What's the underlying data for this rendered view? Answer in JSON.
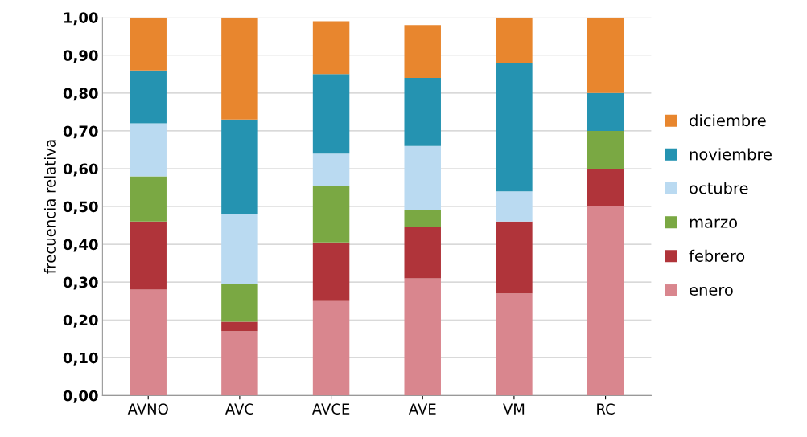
{
  "chart_data": {
    "type": "bar",
    "stacked": true,
    "ylabel": "frecuencia relativa",
    "categories": [
      "AVNO",
      "AVC",
      "AVCE",
      "AVE",
      "VM",
      "RC"
    ],
    "series": [
      {
        "name": "enero",
        "color": "#d9868e",
        "values": [
          0.28,
          0.17,
          0.25,
          0.31,
          0.27,
          0.5
        ]
      },
      {
        "name": "febrero",
        "color": "#b0343a",
        "values": [
          0.18,
          0.025,
          0.155,
          0.135,
          0.19,
          0.1
        ]
      },
      {
        "name": "marzo",
        "color": "#7aa843",
        "values": [
          0.12,
          0.1,
          0.15,
          0.045,
          0,
          0.1
        ]
      },
      {
        "name": "octubre",
        "color": "#badaf1",
        "values": [
          0.14,
          0.185,
          0.085,
          0.17,
          0.08,
          0
        ]
      },
      {
        "name": "noviembre",
        "color": "#2593b1",
        "values": [
          0.14,
          0.25,
          0.21,
          0.18,
          0.34,
          0.1
        ]
      },
      {
        "name": "diciembre",
        "color": "#e8862e",
        "values": [
          0.14,
          0.27,
          0.14,
          0.14,
          0.12,
          0.2
        ]
      }
    ],
    "ylim": [
      0,
      1
    ],
    "yticks": [
      {
        "value": 0,
        "label": "0,00"
      },
      {
        "value": 0.1,
        "label": "0,10"
      },
      {
        "value": 0.2,
        "label": "0,20"
      },
      {
        "value": 0.3,
        "label": "0,30"
      },
      {
        "value": 0.4,
        "label": "0,40"
      },
      {
        "value": 0.5,
        "label": "0,50"
      },
      {
        "value": 0.6,
        "label": "0,60"
      },
      {
        "value": 0.7,
        "label": "0,70"
      },
      {
        "value": 0.8,
        "label": "0,80"
      },
      {
        "value": 0.9,
        "label": "0,90"
      },
      {
        "value": 1.0,
        "label": "1,00"
      }
    ],
    "grid": "y",
    "legend": "right"
  }
}
